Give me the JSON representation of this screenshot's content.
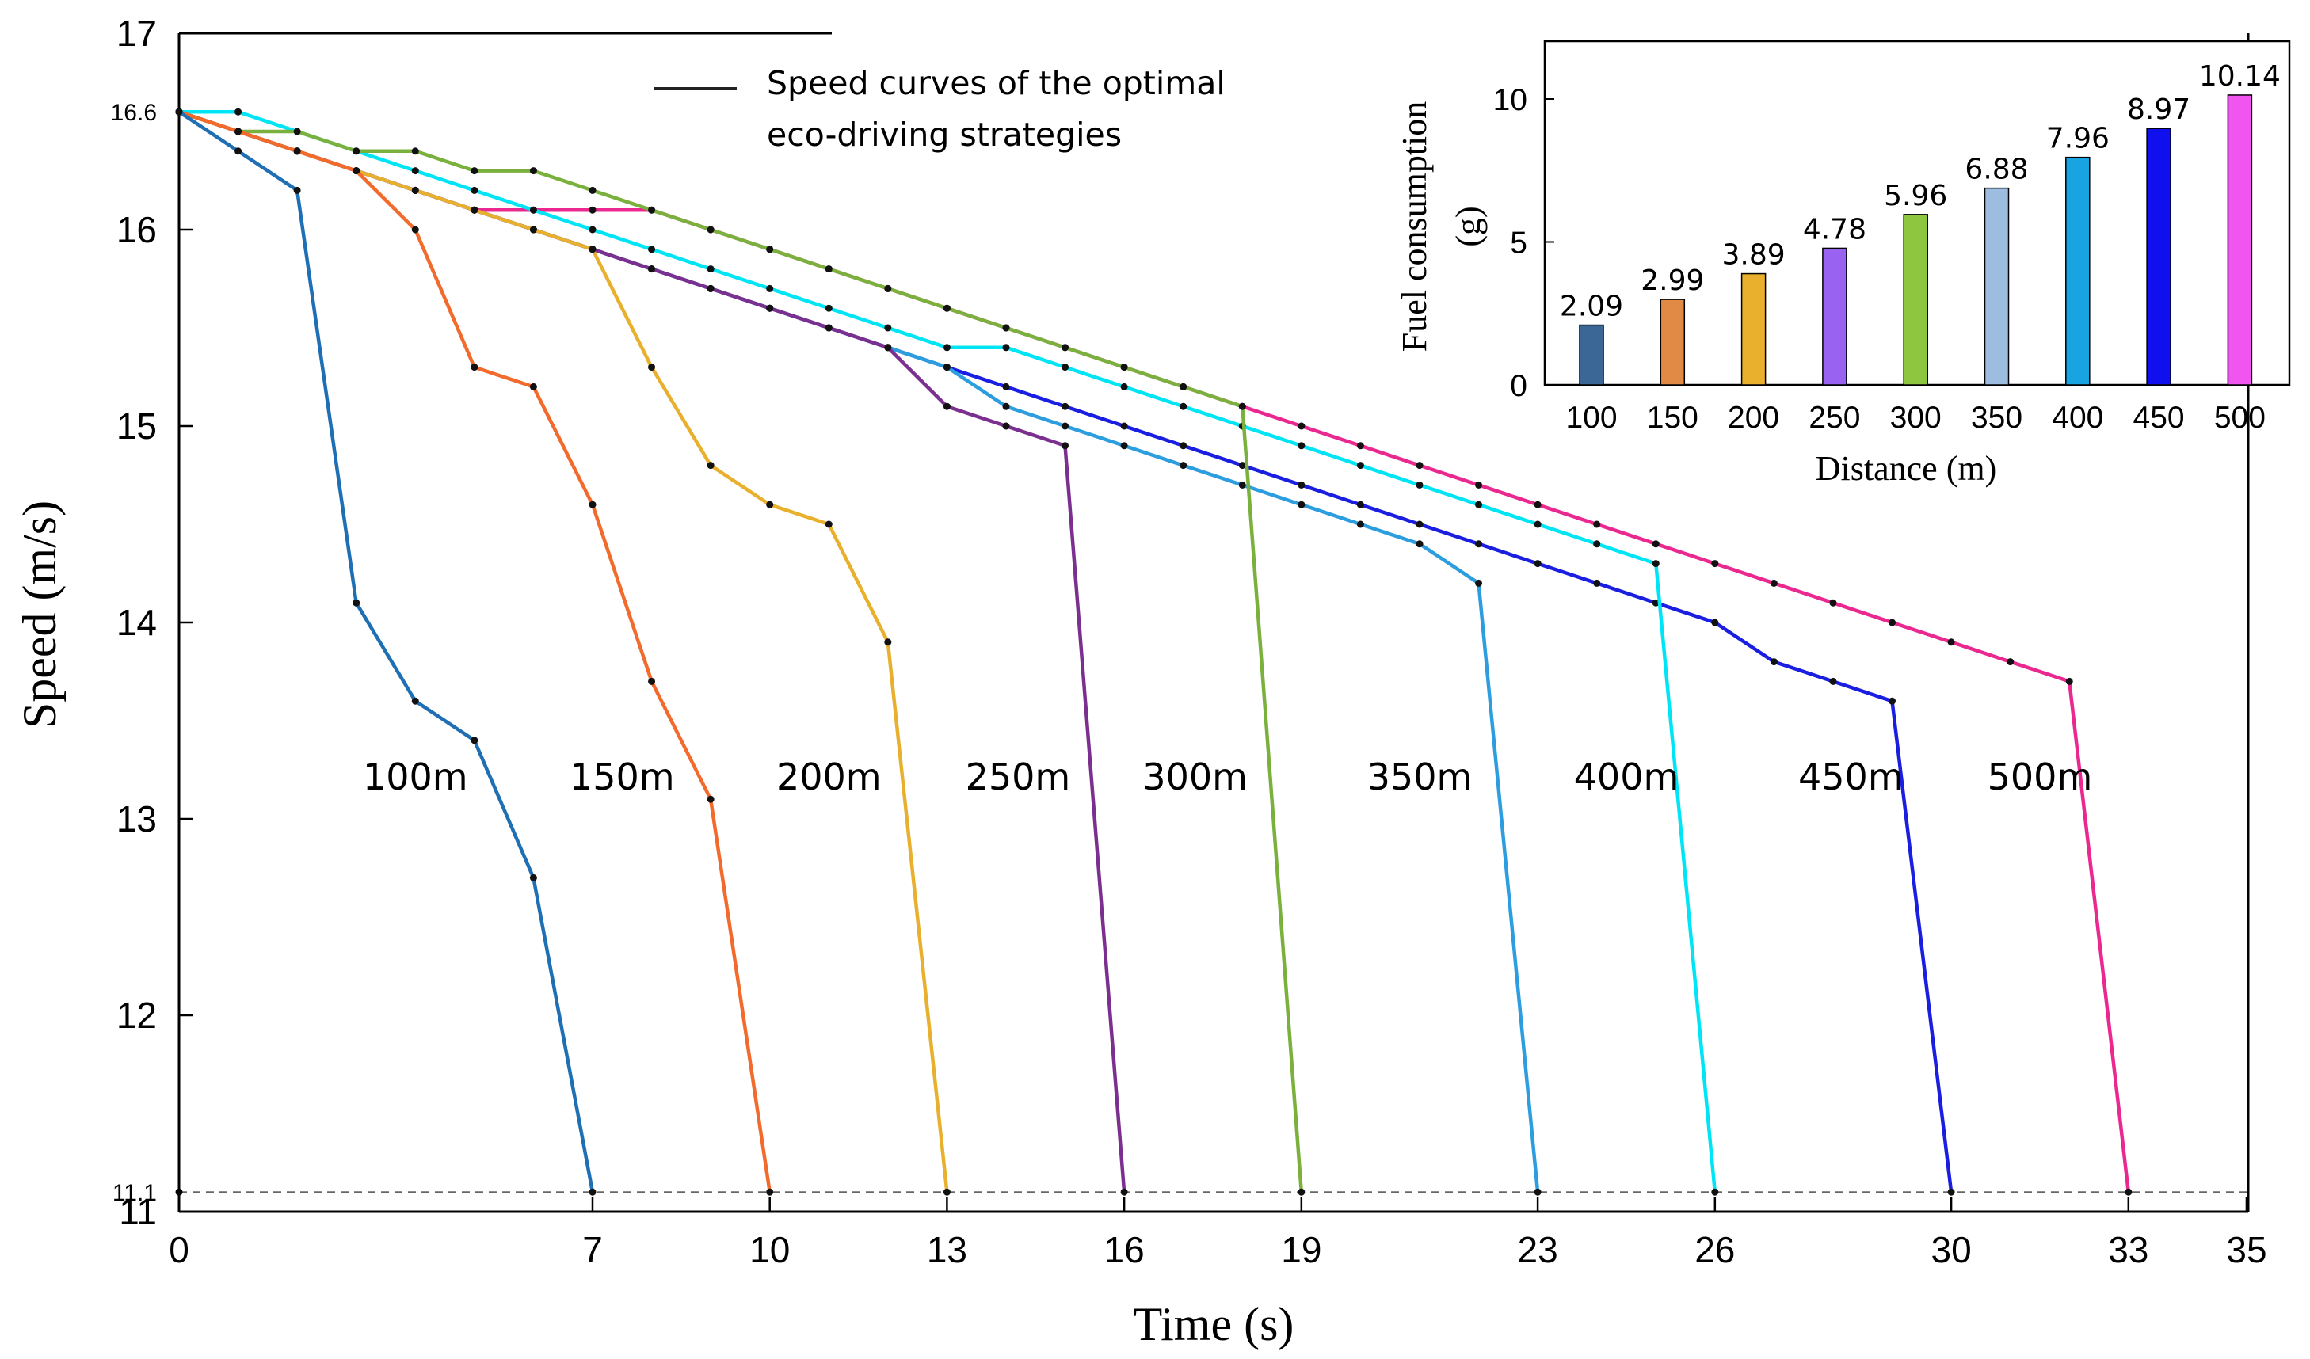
{
  "chart_data": [
    {
      "type": "line",
      "xlabel": "Time (s)",
      "ylabel": "Speed (m/s)",
      "xlim": [
        0,
        35
      ],
      "ylim": [
        11,
        17
      ],
      "x_ticks": [
        0,
        7,
        10,
        13,
        16,
        19,
        23,
        26,
        30,
        33,
        35
      ],
      "y_ticks": [
        11,
        12,
        13,
        14,
        15,
        16,
        17
      ],
      "y_special_ticks": [
        {
          "value": 16.6,
          "label": "16.6"
        },
        {
          "value": 11.1,
          "label": "11.1"
        }
      ],
      "reference_line": {
        "y": 11.1,
        "style": "dashed"
      },
      "legend": "Speed curves of the optimal eco-driving strategies",
      "legend_line_1": "Speed curves of the optimal",
      "legend_line_2": "eco-driving strategies",
      "series": [
        {
          "name": "100m",
          "color": "#1f6fb4",
          "label_at": [
            4,
            13.15
          ],
          "points": [
            [
              0,
              16.6
            ],
            [
              1,
              16.4
            ],
            [
              2,
              16.2
            ],
            [
              3,
              14.1
            ],
            [
              4,
              13.6
            ],
            [
              5,
              13.4
            ],
            [
              6,
              12.7
            ],
            [
              7,
              11.1
            ]
          ]
        },
        {
          "name": "150m",
          "color": "#f26a2c",
          "label_at": [
            7.5,
            13.15
          ],
          "points": [
            [
              0,
              16.6
            ],
            [
              1,
              16.5
            ],
            [
              2,
              16.4
            ],
            [
              3,
              16.3
            ],
            [
              4,
              16.0
            ],
            [
              5,
              15.3
            ],
            [
              6,
              15.2
            ],
            [
              7,
              14.6
            ],
            [
              8,
              13.7
            ],
            [
              9,
              13.1
            ],
            [
              10,
              11.1
            ]
          ]
        },
        {
          "name": "200m",
          "color": "#e8b02c",
          "label_at": [
            11,
            13.15
          ],
          "points": [
            [
              0,
              16.6
            ],
            [
              1,
              16.5
            ],
            [
              2,
              16.4
            ],
            [
              3,
              16.3
            ],
            [
              4,
              16.2
            ],
            [
              5,
              16.1
            ],
            [
              6,
              16.0
            ],
            [
              7,
              15.9
            ],
            [
              8,
              15.3
            ],
            [
              9,
              14.8
            ],
            [
              10,
              14.6
            ],
            [
              11,
              14.5
            ],
            [
              12,
              13.9
            ],
            [
              13,
              11.1
            ]
          ]
        },
        {
          "name": "250m",
          "color": "#7b2f8f",
          "label_at": [
            14.2,
            13.15
          ],
          "points": [
            [
              0,
              16.6
            ],
            [
              1,
              16.5
            ],
            [
              2,
              16.4
            ],
            [
              3,
              16.3
            ],
            [
              4,
              16.2
            ],
            [
              5,
              16.1
            ],
            [
              6,
              16.0
            ],
            [
              7,
              15.9
            ],
            [
              8,
              15.8
            ],
            [
              9,
              15.7
            ],
            [
              10,
              15.6
            ],
            [
              11,
              15.5
            ],
            [
              12,
              15.4
            ],
            [
              13,
              15.1
            ],
            [
              14,
              15.0
            ],
            [
              15,
              14.9
            ],
            [
              16,
              11.1
            ]
          ]
        },
        {
          "name": "300m",
          "color": "#7ab03c",
          "label_at": [
            17.2,
            13.15
          ],
          "points": [
            [
              0,
              16.6
            ],
            [
              1,
              16.5
            ],
            [
              2,
              16.5
            ],
            [
              3,
              16.4
            ],
            [
              4,
              16.4
            ],
            [
              5,
              16.3
            ],
            [
              6,
              16.3
            ],
            [
              7,
              16.2
            ],
            [
              8,
              16.1
            ],
            [
              9,
              16.0
            ],
            [
              10,
              15.9
            ],
            [
              11,
              15.8
            ],
            [
              12,
              15.7
            ],
            [
              13,
              15.6
            ],
            [
              14,
              15.5
            ],
            [
              15,
              15.4
            ],
            [
              16,
              15.3
            ],
            [
              17,
              15.2
            ],
            [
              18,
              15.1
            ],
            [
              19,
              11.1
            ]
          ]
        },
        {
          "name": "350m",
          "color": "#2c9ee0",
          "label_at": [
            21,
            13.15
          ],
          "points": [
            [
              0,
              16.6
            ],
            [
              1,
              16.5
            ],
            [
              2,
              16.4
            ],
            [
              3,
              16.3
            ],
            [
              4,
              16.2
            ],
            [
              5,
              16.1
            ],
            [
              6,
              16.0
            ],
            [
              7,
              15.9
            ],
            [
              8,
              15.8
            ],
            [
              9,
              15.7
            ],
            [
              10,
              15.6
            ],
            [
              11,
              15.5
            ],
            [
              12,
              15.4
            ],
            [
              13,
              15.3
            ],
            [
              14,
              15.1
            ],
            [
              15,
              15.0
            ],
            [
              16,
              14.9
            ],
            [
              17,
              14.8
            ],
            [
              18,
              14.7
            ],
            [
              19,
              14.6
            ],
            [
              20,
              14.5
            ],
            [
              21,
              14.4
            ],
            [
              22,
              14.2
            ],
            [
              23,
              11.1
            ]
          ]
        },
        {
          "name": "400m",
          "color": "#00e5f5",
          "label_at": [
            24.5,
            13.15
          ],
          "points": [
            [
              0,
              16.6
            ],
            [
              1,
              16.6
            ],
            [
              2,
              16.5
            ],
            [
              3,
              16.4
            ],
            [
              4,
              16.3
            ],
            [
              5,
              16.2
            ],
            [
              6,
              16.1
            ],
            [
              7,
              16.0
            ],
            [
              8,
              15.9
            ],
            [
              9,
              15.8
            ],
            [
              10,
              15.7
            ],
            [
              11,
              15.6
            ],
            [
              12,
              15.5
            ],
            [
              13,
              15.4
            ],
            [
              14,
              15.4
            ],
            [
              15,
              15.3
            ],
            [
              16,
              15.2
            ],
            [
              17,
              15.1
            ],
            [
              18,
              15.0
            ],
            [
              19,
              14.9
            ],
            [
              20,
              14.8
            ],
            [
              21,
              14.7
            ],
            [
              22,
              14.6
            ],
            [
              23,
              14.5
            ],
            [
              24,
              14.4
            ],
            [
              25,
              14.3
            ],
            [
              26,
              11.1
            ]
          ]
        },
        {
          "name": "450m",
          "color": "#1a1ee0",
          "label_at": [
            28.3,
            13.15
          ],
          "points": [
            [
              0,
              16.6
            ],
            [
              1,
              16.5
            ],
            [
              2,
              16.4
            ],
            [
              3,
              16.3
            ],
            [
              4,
              16.2
            ],
            [
              5,
              16.1
            ],
            [
              6,
              16.0
            ],
            [
              7,
              15.9
            ],
            [
              8,
              15.8
            ],
            [
              9,
              15.7
            ],
            [
              10,
              15.6
            ],
            [
              11,
              15.5
            ],
            [
              12,
              15.4
            ],
            [
              13,
              15.3
            ],
            [
              14,
              15.2
            ],
            [
              15,
              15.1
            ],
            [
              16,
              15.0
            ],
            [
              17,
              14.9
            ],
            [
              18,
              14.8
            ],
            [
              19,
              14.7
            ],
            [
              20,
              14.6
            ],
            [
              21,
              14.5
            ],
            [
              22,
              14.4
            ],
            [
              23,
              14.3
            ],
            [
              24,
              14.2
            ],
            [
              25,
              14.1
            ],
            [
              26,
              14.0
            ],
            [
              27,
              13.8
            ],
            [
              28,
              13.7
            ],
            [
              29,
              13.6
            ],
            [
              30,
              11.1
            ]
          ]
        },
        {
          "name": "500m",
          "color": "#ea2890",
          "label_at": [
            31.5,
            13.15
          ],
          "points": [
            [
              0,
              16.6
            ],
            [
              1,
              16.5
            ],
            [
              2,
              16.4
            ],
            [
              3,
              16.3
            ],
            [
              4,
              16.2
            ],
            [
              5,
              16.1
            ],
            [
              6,
              16.1
            ],
            [
              7,
              16.1
            ],
            [
              8,
              16.1
            ],
            [
              9,
              16.0
            ],
            [
              10,
              15.9
            ],
            [
              11,
              15.8
            ],
            [
              12,
              15.7
            ],
            [
              13,
              15.6
            ],
            [
              14,
              15.5
            ],
            [
              15,
              15.4
            ],
            [
              16,
              15.3
            ],
            [
              17,
              15.2
            ],
            [
              18,
              15.1
            ],
            [
              19,
              15.0
            ],
            [
              20,
              14.9
            ],
            [
              21,
              14.8
            ],
            [
              22,
              14.7
            ],
            [
              23,
              14.6
            ],
            [
              24,
              14.5
            ],
            [
              25,
              14.4
            ],
            [
              26,
              14.3
            ],
            [
              27,
              14.2
            ],
            [
              28,
              14.1
            ],
            [
              29,
              14.0
            ],
            [
              30,
              13.9
            ],
            [
              31,
              13.8
            ],
            [
              32,
              13.7
            ],
            [
              33,
              11.1
            ]
          ]
        }
      ]
    },
    {
      "type": "bar",
      "xlabel": "Distance (m)",
      "ylabel_line_1": "Fuel consumption",
      "ylabel_line_2": "(g)",
      "ylim": [
        0,
        12
      ],
      "y_ticks": [
        0,
        5,
        10
      ],
      "categories": [
        "100",
        "150",
        "200",
        "250",
        "300",
        "350",
        "400",
        "450",
        "500"
      ],
      "values": [
        2.09,
        2.99,
        3.89,
        4.78,
        5.96,
        6.88,
        7.96,
        8.97,
        10.14
      ],
      "value_labels": [
        "2.09",
        "2.99",
        "3.89",
        "4.78",
        "5.96",
        "6.88",
        "7.96",
        "8.97",
        "10.14"
      ],
      "colors": [
        "#3b6796",
        "#e08a45",
        "#e8b02c",
        "#9a62f0",
        "#8ec63f",
        "#9cbde0",
        "#17a4e0",
        "#1010ee",
        "#f055f0"
      ]
    }
  ]
}
